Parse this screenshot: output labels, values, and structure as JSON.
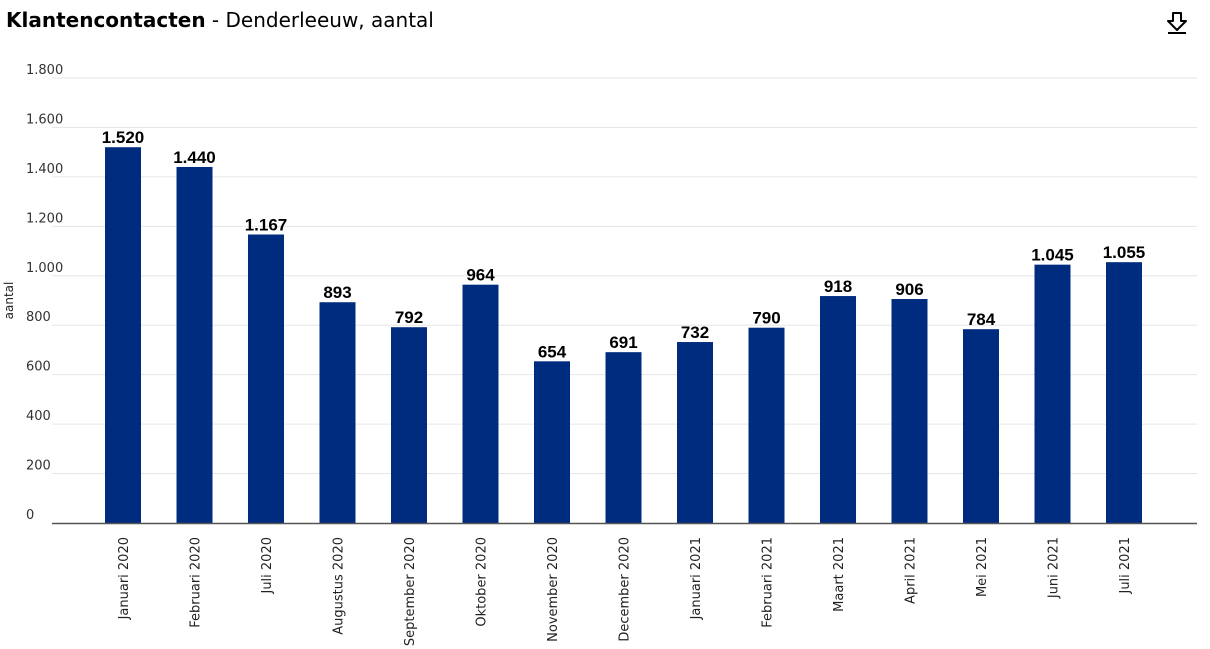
{
  "header": {
    "title": "Klantencontacten",
    "subtitle": " - Denderleeuw, aantal"
  },
  "icons": {
    "download": "download-icon"
  },
  "colors": {
    "bar": "#002C7F",
    "grid": "#e6e6e6",
    "axis": "#555555"
  },
  "chart_data": {
    "type": "bar",
    "title": "Klantencontacten - Denderleeuw, aantal",
    "xlabel": "",
    "ylabel": "aantal",
    "ylim": [
      0,
      1800
    ],
    "yticks": [
      0,
      200,
      400,
      600,
      800,
      1000,
      1200,
      1400,
      1600,
      1800
    ],
    "ytick_labels": [
      "0",
      "200",
      "400",
      "600",
      "800",
      "1.000",
      "1.200",
      "1.400",
      "1.600",
      "1.800"
    ],
    "grid": true,
    "categories": [
      "Januari 2020",
      "Februari 2020",
      "Juli 2020",
      "Augustus 2020",
      "September 2020",
      "Oktober 2020",
      "November 2020",
      "December 2020",
      "Januari 2021",
      "Februari 2021",
      "Maart 2021",
      "April 2021",
      "Mei 2021",
      "Juni 2021",
      "Juli 2021"
    ],
    "values": [
      1520,
      1440,
      1167,
      893,
      792,
      964,
      654,
      691,
      732,
      790,
      918,
      906,
      784,
      1045,
      1055
    ],
    "data_labels": [
      "1.520",
      "1.440",
      "1.167",
      "893",
      "792",
      "964",
      "654",
      "691",
      "732",
      "790",
      "918",
      "906",
      "784",
      "1.045",
      "1.055"
    ]
  }
}
